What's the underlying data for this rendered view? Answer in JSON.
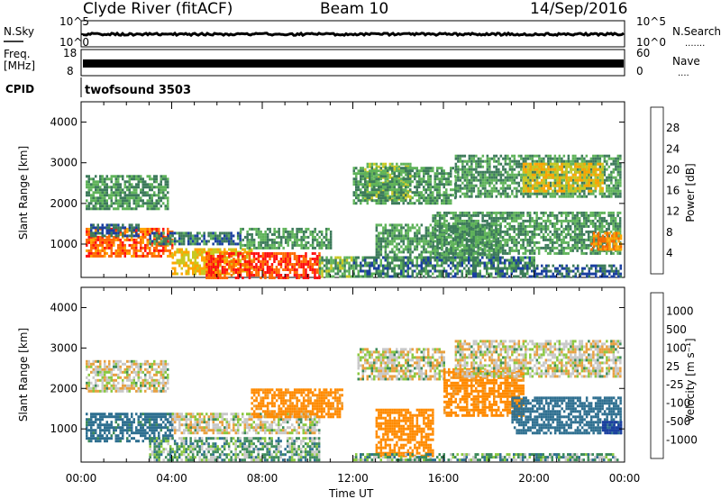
{
  "header": {
    "title": "Clyde River (fitACF)",
    "beam": "Beam 10",
    "date": "14/Sep/2016"
  },
  "strip_nsky": {
    "left_label": "N.Sky",
    "left_ticks": [
      "10^5",
      "10^0"
    ],
    "right_label": "N.Search",
    "right_ticks": [
      "10^5",
      "10^0"
    ],
    "right_style": "......."
  },
  "strip_freq": {
    "left_label_line1": "Freq.",
    "left_label_line2": "[MHz]",
    "left_ticks": [
      "18",
      "8"
    ],
    "right_label": "Nave",
    "right_ticks": [
      "60",
      "0"
    ],
    "right_style": "...."
  },
  "cpid": {
    "label": "CPID",
    "value": "twofsound 3503"
  },
  "colors": {
    "power_scale": [
      "#2020ff",
      "#1a3fa0",
      "#3c7a5a",
      "#5fb35a",
      "#c8c820",
      "#ffa500",
      "#ff6a00",
      "#ff1010"
    ],
    "velocity_scale": [
      "#1a3fa0",
      "#2e6f90",
      "#3c8a5a",
      "#8ac840",
      "#c8c8c8",
      "#e8a040",
      "#ff8a00",
      "#ff5a00",
      "#ff1010"
    ]
  },
  "chart_data": [
    {
      "type": "heatmap",
      "name": "power",
      "ylabel": "Slant Range [km]",
      "xlabel": "Time UT",
      "x_ticks": [
        "00:00",
        "04:00",
        "08:00",
        "12:00",
        "16:00",
        "20:00",
        "00:00"
      ],
      "y_ticks": [
        1000,
        2000,
        3000,
        4000
      ],
      "ylim": [
        180,
        4500
      ],
      "xlim": [
        0,
        24
      ],
      "colorbar": {
        "label": "Power [dB]",
        "ticks": [
          "28",
          "24",
          "20",
          "16",
          "12",
          "8",
          "4"
        ]
      },
      "regions": [
        {
          "t0": 0.2,
          "t1": 4.0,
          "r0": 700,
          "r1": 1400,
          "level": 26
        },
        {
          "t0": 4.0,
          "t1": 7.5,
          "r0": 300,
          "r1": 900,
          "level": 20
        },
        {
          "t0": 5.5,
          "t1": 10.5,
          "r0": 200,
          "r1": 800,
          "level": 28
        },
        {
          "t0": 10.5,
          "t1": 12.0,
          "r0": 200,
          "r1": 700,
          "level": 14
        },
        {
          "t0": 0.2,
          "t1": 3.8,
          "r0": 1900,
          "r1": 2700,
          "level": 12
        },
        {
          "t0": 0.4,
          "t1": 2.5,
          "r0": 1200,
          "r1": 1500,
          "level": 8
        },
        {
          "t0": 3.0,
          "t1": 7.0,
          "r0": 1000,
          "r1": 1300,
          "level": 10
        },
        {
          "t0": 7.0,
          "t1": 11.0,
          "r0": 900,
          "r1": 1400,
          "level": 12
        },
        {
          "t0": 12.5,
          "t1": 14.5,
          "r0": 2100,
          "r1": 3000,
          "level": 16
        },
        {
          "t0": 12.0,
          "t1": 16.5,
          "r0": 2000,
          "r1": 2900,
          "level": 12
        },
        {
          "t0": 16.5,
          "t1": 23.8,
          "r0": 2200,
          "r1": 3200,
          "level": 12
        },
        {
          "t0": 19.5,
          "t1": 23.0,
          "r0": 2300,
          "r1": 3000,
          "level": 20
        },
        {
          "t0": 13.0,
          "t1": 18.5,
          "r0": 700,
          "r1": 1500,
          "level": 12
        },
        {
          "t0": 15.5,
          "t1": 23.8,
          "r0": 800,
          "r1": 1800,
          "level": 12
        },
        {
          "t0": 22.5,
          "t1": 23.8,
          "r0": 900,
          "r1": 1300,
          "level": 24
        },
        {
          "t0": 12.0,
          "t1": 20.0,
          "r0": 200,
          "r1": 700,
          "level": 10
        },
        {
          "t0": 20.0,
          "t1": 23.8,
          "r0": 200,
          "r1": 500,
          "level": 8
        }
      ]
    },
    {
      "type": "heatmap",
      "name": "velocity",
      "ylabel": "Slant Range [km]",
      "xlabel": "Time UT",
      "x_ticks": [
        "00:00",
        "04:00",
        "08:00",
        "12:00",
        "16:00",
        "20:00",
        "00:00"
      ],
      "y_ticks": [
        1000,
        2000,
        3000,
        4000
      ],
      "ylim": [
        180,
        4500
      ],
      "xlim": [
        0,
        24
      ],
      "colorbar": {
        "label": "Velocity [m s⁻¹]",
        "ticks": [
          "1000",
          "500",
          "100",
          "25",
          "-25",
          "-100",
          "-500",
          "-1000"
        ]
      },
      "regions": [
        {
          "t0": 0.2,
          "t1": 4.0,
          "r0": 700,
          "r1": 1400,
          "level": 150
        },
        {
          "t0": 4.0,
          "t1": 10.5,
          "r0": 900,
          "r1": 1400,
          "level": 0
        },
        {
          "t0": 3.0,
          "t1": 10.5,
          "r0": 250,
          "r1": 800,
          "level": 60
        },
        {
          "t0": 0.2,
          "t1": 3.8,
          "r0": 1900,
          "r1": 2700,
          "level": 0
        },
        {
          "t0": 7.5,
          "t1": 11.5,
          "r0": 1300,
          "r1": 2000,
          "level": -150
        },
        {
          "t0": 12.2,
          "t1": 16.0,
          "r0": 2200,
          "r1": 3000,
          "level": 0
        },
        {
          "t0": 13.0,
          "t1": 15.5,
          "r0": 300,
          "r1": 1500,
          "level": -200
        },
        {
          "t0": 16.0,
          "t1": 19.5,
          "r0": 1300,
          "r1": 2500,
          "level": -150
        },
        {
          "t0": 16.5,
          "t1": 23.8,
          "r0": 2300,
          "r1": 3200,
          "level": 0
        },
        {
          "t0": 19.0,
          "t1": 23.8,
          "r0": 900,
          "r1": 1800,
          "level": 200
        },
        {
          "t0": 23.0,
          "t1": 23.8,
          "r0": 900,
          "r1": 1200,
          "level": 600
        },
        {
          "t0": 12.0,
          "t1": 23.8,
          "r0": 200,
          "r1": 400,
          "level": 60
        }
      ]
    }
  ]
}
